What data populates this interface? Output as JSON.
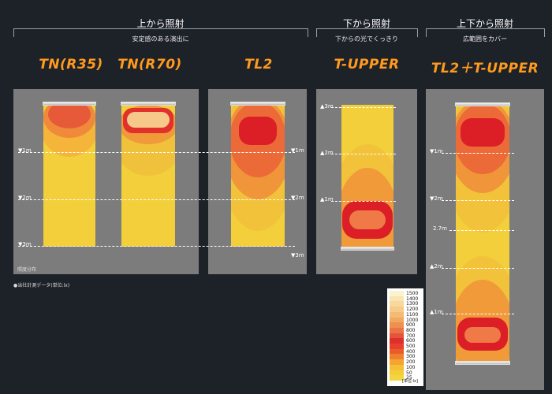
{
  "headers": {
    "top_lighting": "上から照射",
    "top_lighting_sub": "安定感のある演出に",
    "bottom_lighting": "下から照射",
    "bottom_lighting_sub": "下からの光でくっきり",
    "both_lighting": "上下から照射",
    "both_lighting_sub": "広範囲をカバー"
  },
  "products": {
    "tn_r35": "TN(R35)",
    "tn_r70": "TN(R70)",
    "tl2": "TL2",
    "t_upper": "T-UPPER",
    "tl2_t_upper": "TL2＋T-UPPER"
  },
  "distance_labels": {
    "down_1m": "▼1m",
    "down_2m": "▼2m",
    "down_3m": "▼3m",
    "up_1m": "▲1m",
    "up_2m": "▲2m",
    "up_3m": "▲3m",
    "mid_27m": "2.7m"
  },
  "notes": {
    "illuminance_dist": "照度分布",
    "company_data": "●当社計測データ(単位:lx)",
    "unit": "[単位:lx]"
  },
  "legend": [
    {
      "value": "1500",
      "color": "#fbf2cf"
    },
    {
      "value": "1400",
      "color": "#f9e4b4"
    },
    {
      "value": "1300",
      "color": "#f8d89c"
    },
    {
      "value": "1200",
      "color": "#f6cb88"
    },
    {
      "value": "1100",
      "color": "#f4bb74"
    },
    {
      "value": "1000",
      "color": "#f1a85f"
    },
    {
      "value": "900",
      "color": "#ee9050"
    },
    {
      "value": "800",
      "color": "#ea7444"
    },
    {
      "value": "700",
      "color": "#e5533b"
    },
    {
      "value": "600",
      "color": "#de2f2c"
    },
    {
      "value": "500",
      "color": "#e7402b"
    },
    {
      "value": "400",
      "color": "#ec5c2a"
    },
    {
      "value": "300",
      "color": "#f0812c"
    },
    {
      "value": "200",
      "color": "#f4a431"
    },
    {
      "value": "100",
      "color": "#f5bf36"
    },
    {
      "value": "50",
      "color": "#f4cc3a"
    },
    {
      "value": "25",
      "color": "#f3d53f"
    }
  ],
  "colors": {
    "title": "#ff9a1e",
    "panel": "#7c7c7c",
    "field": "#f3cf3b",
    "background": "#1d2128"
  }
}
